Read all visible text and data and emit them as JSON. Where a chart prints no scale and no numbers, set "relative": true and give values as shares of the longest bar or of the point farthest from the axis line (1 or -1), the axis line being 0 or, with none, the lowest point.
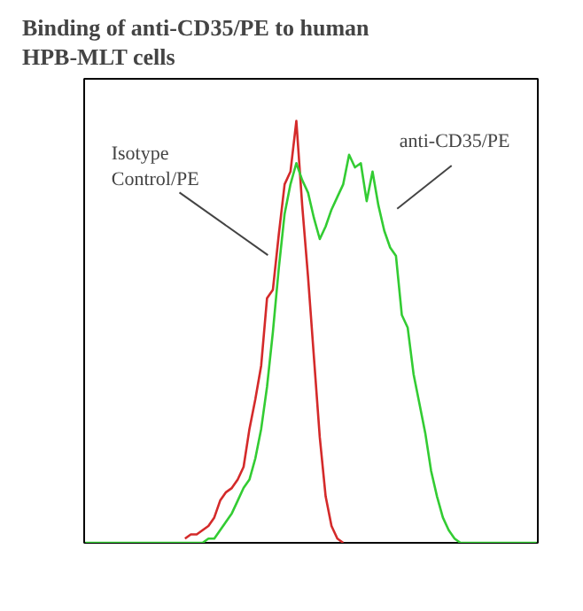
{
  "chart_data": {
    "type": "line",
    "title": "Binding of anti-CD35/PE to human\nHPB-MLT cells",
    "relative": true,
    "legend": false,
    "grid": false,
    "categories": [
      null,
      null,
      null,
      null,
      null,
      null,
      null,
      null,
      null,
      null,
      null,
      null,
      null,
      null,
      null,
      null,
      null,
      null,
      null,
      null,
      null,
      null,
      null,
      null,
      null,
      null,
      null,
      null,
      null,
      null,
      null,
      null,
      null,
      null,
      null,
      null,
      null,
      null,
      null,
      null,
      null,
      null,
      null,
      null,
      null,
      null,
      null,
      null,
      null,
      null,
      null,
      null,
      null,
      null,
      null,
      null,
      null,
      null,
      null,
      null,
      null,
      null,
      null,
      null,
      null,
      null,
      null,
      null,
      null,
      null,
      null,
      null,
      null,
      null,
      null,
      null,
      null,
      null
    ],
    "series": [
      {
        "name": "Isotype Control/PE",
        "color": "#d42a2a",
        "values": [
          null,
          null,
          null,
          null,
          null,
          null,
          null,
          null,
          null,
          null,
          null,
          null,
          null,
          null,
          null,
          null,
          null,
          0.01,
          0.02,
          0.02,
          0.03,
          0.04,
          0.06,
          0.1,
          0.12,
          0.13,
          0.15,
          0.18,
          0.27,
          0.34,
          0.42,
          0.58,
          0.6,
          0.73,
          0.85,
          0.88,
          1.0,
          0.8,
          0.63,
          0.44,
          0.25,
          0.11,
          0.04,
          0.01,
          0,
          null,
          null,
          null,
          null,
          null,
          null,
          null,
          null,
          null,
          null,
          null,
          null,
          null,
          null,
          null,
          null,
          null,
          null,
          null,
          null,
          null,
          null,
          null,
          null,
          null,
          null,
          null,
          null,
          null,
          null,
          null,
          null,
          null
        ]
      },
      {
        "name": "anti-CD35/PE",
        "color": "#33cc33",
        "values": [
          0,
          0,
          0,
          0,
          0,
          0,
          0,
          0,
          0,
          0,
          0,
          0,
          0,
          0,
          0,
          0,
          0,
          0,
          0,
          0.0,
          0.0,
          0.01,
          0.01,
          0.03,
          0.05,
          0.07,
          0.1,
          0.13,
          0.15,
          0.2,
          0.27,
          0.37,
          0.5,
          0.65,
          0.78,
          0.85,
          0.9,
          0.86,
          0.83,
          0.77,
          0.72,
          0.75,
          0.79,
          0.82,
          0.85,
          0.92,
          0.89,
          0.9,
          0.81,
          0.88,
          0.8,
          0.74,
          0.7,
          0.68,
          0.54,
          0.51,
          0.4,
          0.33,
          0.26,
          0.17,
          0.11,
          0.06,
          0.03,
          0.01,
          0,
          0,
          0,
          0,
          0,
          0,
          0,
          0,
          0,
          0,
          0,
          0,
          0,
          0
        ]
      }
    ]
  }
}
